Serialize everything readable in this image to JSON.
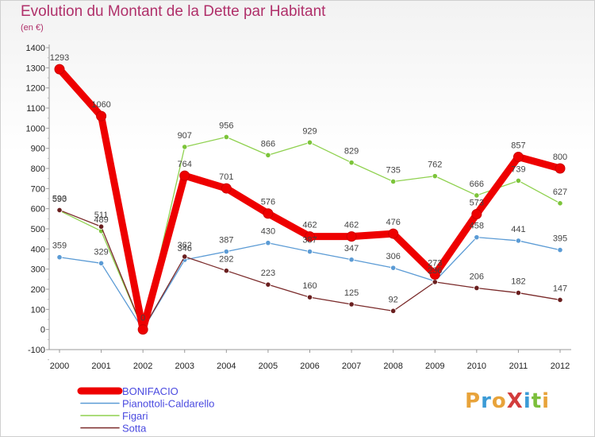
{
  "header": {
    "title": "Evolution du Montant de la Dette par Habitant",
    "subtitle": "(en €)"
  },
  "logo": {
    "text": "ProXiti",
    "letters": [
      {
        "ch": "P",
        "color": "#e8a33a"
      },
      {
        "ch": "r",
        "color": "#3b9bd6"
      },
      {
        "ch": "o",
        "color": "#e8a33a"
      },
      {
        "ch": "X",
        "color": "#d23c3c"
      },
      {
        "ch": "i",
        "color": "#3b9bd6"
      },
      {
        "ch": "t",
        "color": "#7cbf3b"
      },
      {
        "ch": "i",
        "color": "#e8a33a"
      }
    ]
  },
  "chart_data": {
    "type": "line",
    "title": "Evolution du Montant de la Dette par Habitant",
    "subtitle": "(en €)",
    "x": [
      "2000",
      "2001",
      "2002",
      "2003",
      "2004",
      "2005",
      "2006",
      "2007",
      "2008",
      "2009",
      "2010",
      "2011",
      "2012"
    ],
    "ylim": [
      -100,
      1400
    ],
    "yticks": [
      -100,
      0,
      100,
      200,
      300,
      400,
      500,
      600,
      700,
      800,
      900,
      1000,
      1100,
      1200,
      1300,
      1400
    ],
    "grid": false,
    "legend_position": "bottom-left",
    "series": [
      {
        "name": "BONIFACIO",
        "color": "#ee0000",
        "marker": "#ee0000",
        "values": [
          1293,
          1060,
          0,
          764,
          701,
          576,
          462,
          462,
          476,
          273,
          573,
          857,
          800
        ],
        "labels": [
          "1293",
          "1060",
          "0",
          "764",
          "701",
          "576",
          "462",
          "462",
          "476",
          "273",
          "573",
          "857",
          "800"
        ]
      },
      {
        "name": "Pianottoli-Caldarello",
        "color": "#5b9bd5",
        "marker": "#5b9bd5",
        "values": [
          359,
          329,
          0,
          346,
          387,
          430,
          387,
          347,
          306,
          240,
          458,
          441,
          395
        ],
        "labels": [
          "359",
          "329",
          "",
          "346",
          "387",
          "430",
          "387",
          "347",
          "306",
          "",
          "458",
          "441",
          "395"
        ]
      },
      {
        "name": "Figari",
        "color": "#8fd14f",
        "marker": "#7cc43a",
        "values": [
          590,
          489,
          0,
          907,
          956,
          866,
          929,
          829,
          735,
          762,
          666,
          739,
          627
        ],
        "labels": [
          "590",
          "489",
          "",
          "907",
          "956",
          "866",
          "929",
          "829",
          "735",
          "762",
          "666",
          "739",
          "627"
        ]
      },
      {
        "name": "Sotta",
        "color": "#7a2a2a",
        "marker": "#6a1f1f",
        "values": [
          593,
          511,
          0,
          362,
          292,
          223,
          160,
          125,
          92,
          236,
          206,
          182,
          147
        ],
        "labels": [
          "593",
          "511",
          "",
          "362",
          "292",
          "223",
          "160",
          "125",
          "92",
          "236",
          "206",
          "182",
          "147"
        ]
      }
    ]
  }
}
